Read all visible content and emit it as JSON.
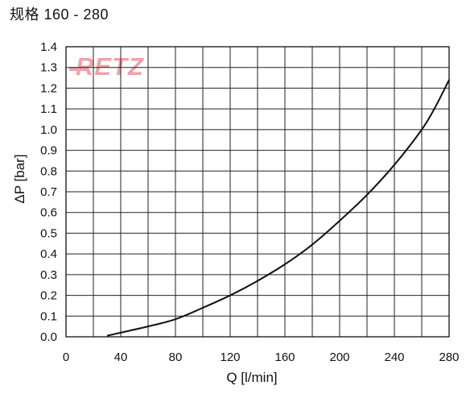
{
  "title": "规格 160 - 280",
  "logo": {
    "text": "RETZ",
    "color": "#f2a0a8"
  },
  "chart_data": {
    "type": "line",
    "xlabel": "Q  [l/min]",
    "ylabel": "ΔP  [bar]",
    "xlim": [
      0,
      280
    ],
    "ylim": [
      0,
      1.4
    ],
    "x_ticks": [
      "0",
      "40",
      "80",
      "120",
      "160",
      "200",
      "240",
      "280"
    ],
    "y_ticks": [
      "0.0",
      "0.1",
      "0.2",
      "0.3",
      "0.4",
      "0.5",
      "0.6",
      "0.7",
      "0.8",
      "0.9",
      "1.0",
      "1.1",
      "1.2",
      "1.3",
      "1.4"
    ],
    "grid": true,
    "series": [
      {
        "color": "#111111",
        "x": [
          30,
          40,
          60,
          80,
          100,
          120,
          140,
          160,
          180,
          200,
          220,
          240,
          260,
          270,
          280
        ],
        "y": [
          0.005,
          0.02,
          0.05,
          0.085,
          0.14,
          0.2,
          0.27,
          0.35,
          0.445,
          0.56,
          0.685,
          0.83,
          1.0,
          1.11,
          1.24
        ]
      }
    ]
  }
}
